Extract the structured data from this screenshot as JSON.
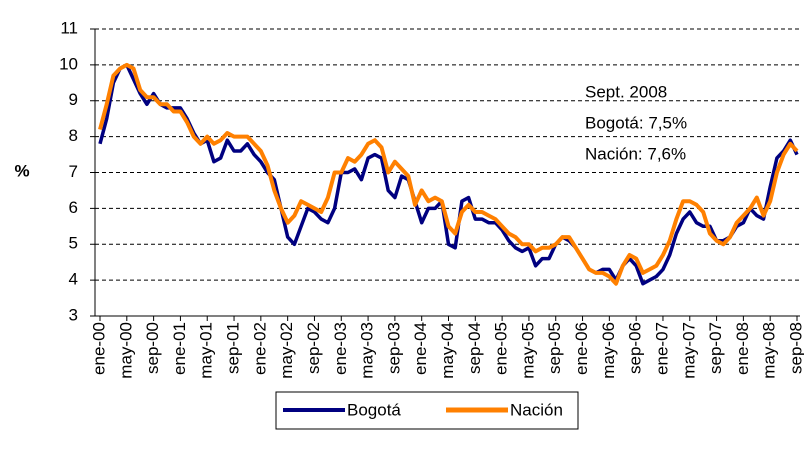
{
  "chart_data": {
    "type": "line",
    "y_label": "%",
    "annotations": [
      "Sept. 2008",
      "Bogotá: 7,5%",
      "Nación: 7,6%"
    ],
    "categories": [
      "ene-00",
      null,
      null,
      null,
      "may-00",
      null,
      null,
      null,
      "sep-00",
      null,
      null,
      null,
      "ene-01",
      null,
      null,
      null,
      "may-01",
      null,
      null,
      null,
      "sep-01",
      null,
      null,
      null,
      "ene-02",
      null,
      null,
      null,
      "may-02",
      null,
      null,
      null,
      "sep-02",
      null,
      null,
      null,
      "ene-03",
      null,
      null,
      null,
      "may-03",
      null,
      null,
      null,
      "sep-03",
      null,
      null,
      null,
      "ene-04",
      null,
      null,
      null,
      "may-04",
      null,
      null,
      null,
      "sep-04",
      null,
      null,
      null,
      "ene-05",
      null,
      null,
      null,
      "may-05",
      null,
      null,
      null,
      "sep-05",
      null,
      null,
      null,
      "ene-06",
      null,
      null,
      null,
      "may-06",
      null,
      null,
      null,
      "sep-06",
      null,
      null,
      null,
      "ene-07",
      null,
      null,
      null,
      "may-07",
      null,
      null,
      null,
      "sep-07",
      null,
      null,
      null,
      "ene-08",
      null,
      null,
      null,
      "may-08",
      null,
      null,
      null,
      "sep-08"
    ],
    "series": [
      {
        "name": "Bogotá",
        "color": "#000080",
        "values": [
          7.8,
          8.5,
          9.5,
          9.9,
          10.0,
          9.6,
          9.2,
          8.9,
          9.2,
          8.9,
          8.8,
          8.8,
          8.8,
          8.5,
          8.1,
          7.8,
          7.9,
          7.3,
          7.4,
          7.9,
          7.6,
          7.6,
          7.8,
          7.5,
          7.3,
          7.0,
          6.8,
          6.0,
          5.2,
          5.0,
          5.5,
          6.0,
          5.9,
          5.7,
          5.6,
          6.0,
          7.0,
          7.0,
          7.1,
          6.8,
          7.4,
          7.5,
          7.4,
          6.5,
          6.3,
          6.9,
          6.8,
          6.2,
          5.6,
          6.0,
          6.0,
          6.2,
          5.0,
          4.9,
          6.2,
          6.3,
          5.7,
          5.7,
          5.6,
          5.6,
          5.4,
          5.1,
          4.9,
          4.8,
          4.9,
          4.4,
          4.6,
          4.6,
          5.0,
          5.2,
          5.1,
          4.9,
          4.6,
          4.3,
          4.2,
          4.3,
          4.3,
          4.0,
          4.4,
          4.6,
          4.4,
          3.9,
          4.0,
          4.1,
          4.3,
          4.7,
          5.3,
          5.7,
          5.9,
          5.6,
          5.5,
          5.5,
          5.1,
          5.1,
          5.2,
          5.5,
          5.6,
          6.0,
          5.8,
          5.7,
          6.6,
          7.4,
          7.6,
          7.9,
          7.5
        ]
      },
      {
        "name": "Nación",
        "color": "#ff8000",
        "values": [
          8.2,
          8.9,
          9.7,
          9.9,
          10.0,
          9.9,
          9.3,
          9.1,
          9.1,
          8.9,
          8.9,
          8.7,
          8.7,
          8.4,
          8.0,
          7.8,
          8.0,
          7.8,
          7.9,
          8.1,
          8.0,
          8.0,
          8.0,
          7.8,
          7.6,
          7.2,
          6.5,
          6.0,
          5.6,
          5.8,
          6.2,
          6.1,
          6.0,
          5.9,
          6.3,
          7.0,
          7.0,
          7.4,
          7.3,
          7.5,
          7.8,
          7.9,
          7.7,
          7.0,
          7.3,
          7.1,
          6.9,
          6.1,
          6.5,
          6.2,
          6.3,
          6.2,
          5.5,
          5.3,
          5.9,
          6.1,
          5.9,
          5.9,
          5.8,
          5.7,
          5.5,
          5.3,
          5.2,
          5.0,
          5.0,
          4.8,
          4.9,
          4.9,
          5.0,
          5.2,
          5.2,
          4.9,
          4.6,
          4.3,
          4.2,
          4.2,
          4.1,
          3.9,
          4.4,
          4.7,
          4.6,
          4.2,
          4.3,
          4.4,
          4.7,
          5.1,
          5.7,
          6.2,
          6.2,
          6.1,
          5.9,
          5.3,
          5.1,
          5.0,
          5.2,
          5.6,
          5.8,
          6.0,
          6.3,
          5.8,
          6.2,
          7.0,
          7.5,
          7.8,
          7.6
        ]
      }
    ],
    "ylim": [
      3,
      11
    ],
    "yticks": [
      3,
      4,
      5,
      6,
      7,
      8,
      9,
      10,
      11
    ],
    "grid": true,
    "legend": "bottom"
  }
}
